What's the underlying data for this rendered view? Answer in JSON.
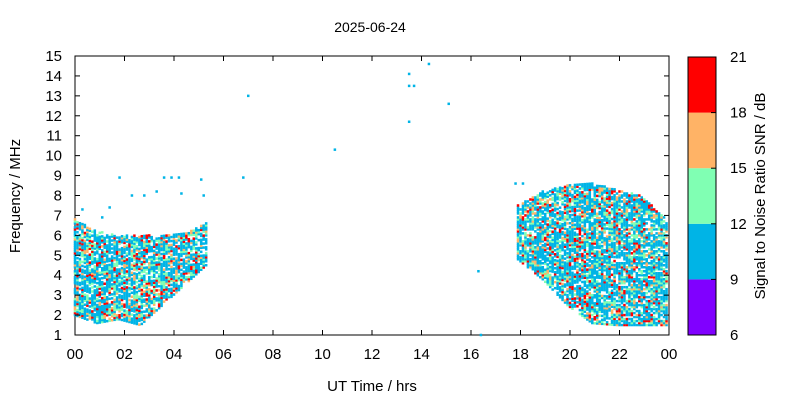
{
  "chart_data": {
    "type": "heatmap",
    "title": "2025-06-24",
    "xlabel": "UT Time / hrs",
    "ylabel": "Frequency / MHz",
    "xlim": [
      0,
      24
    ],
    "ylim": [
      1,
      15
    ],
    "x_ticks": [
      "00",
      "02",
      "04",
      "06",
      "08",
      "10",
      "12",
      "14",
      "16",
      "18",
      "20",
      "22",
      "00"
    ],
    "y_ticks": [
      "1",
      "2",
      "3",
      "4",
      "5",
      "6",
      "7",
      "8",
      "9",
      "10",
      "11",
      "12",
      "13",
      "14",
      "15"
    ],
    "colorbar": {
      "label": "Signal to Noise Ratio SNR / dB",
      "ticks": [
        "6",
        "9",
        "12",
        "15",
        "18",
        "21"
      ],
      "range": [
        6,
        21
      ],
      "bands": [
        {
          "min": 6,
          "max": 9,
          "color": "#8000ff"
        },
        {
          "min": 9,
          "max": 12,
          "color": "#00b4e6"
        },
        {
          "min": 12,
          "max": 15,
          "color": "#80ffb3"
        },
        {
          "min": 15,
          "max": 18,
          "color": "#ffb366"
        },
        {
          "min": 18,
          "max": 21,
          "color": "#ff0000"
        }
      ]
    },
    "isolated_points": [
      {
        "t": 1.8,
        "f": 8.9,
        "snr": 10
      },
      {
        "t": 2.3,
        "f": 8.0,
        "snr": 10
      },
      {
        "t": 2.8,
        "f": 8.0,
        "snr": 10
      },
      {
        "t": 3.3,
        "f": 8.2,
        "snr": 10
      },
      {
        "t": 3.6,
        "f": 8.9,
        "snr": 10
      },
      {
        "t": 3.9,
        "f": 8.9,
        "snr": 10
      },
      {
        "t": 4.2,
        "f": 8.9,
        "snr": 10
      },
      {
        "t": 4.3,
        "f": 8.1,
        "snr": 10
      },
      {
        "t": 5.1,
        "f": 8.8,
        "snr": 10
      },
      {
        "t": 5.2,
        "f": 8.0,
        "snr": 10
      },
      {
        "t": 6.8,
        "f": 8.9,
        "snr": 10
      },
      {
        "t": 7.0,
        "f": 13.0,
        "snr": 10
      },
      {
        "t": 10.5,
        "f": 10.3,
        "snr": 10
      },
      {
        "t": 13.5,
        "f": 14.1,
        "snr": 10
      },
      {
        "t": 13.5,
        "f": 13.5,
        "snr": 10
      },
      {
        "t": 13.7,
        "f": 13.5,
        "snr": 10
      },
      {
        "t": 13.5,
        "f": 11.7,
        "snr": 10
      },
      {
        "t": 14.3,
        "f": 14.6,
        "snr": 10
      },
      {
        "t": 15.1,
        "f": 12.6,
        "snr": 10
      },
      {
        "t": 16.3,
        "f": 4.2,
        "snr": 10
      },
      {
        "t": 16.4,
        "f": 1.0,
        "snr": 10
      },
      {
        "t": 17.8,
        "f": 8.6,
        "snr": 10
      },
      {
        "t": 18.1,
        "f": 8.6,
        "snr": 10
      },
      {
        "t": 0.3,
        "f": 7.3,
        "snr": 10
      },
      {
        "t": 1.4,
        "f": 7.4,
        "snr": 10
      },
      {
        "t": 1.1,
        "f": 6.9,
        "snr": 10
      }
    ],
    "clusters": [
      {
        "t0": 0.0,
        "t1": 5.3,
        "f_low": [
          2.0,
          1.6,
          1.8,
          1.5,
          2.5,
          3.5,
          4.5
        ],
        "f_high": [
          6.8,
          6.2,
          6.0,
          6.0,
          6.0,
          6.1,
          6.6
        ]
      },
      {
        "t0": 17.9,
        "t1": 23.9,
        "f_low": [
          4.8,
          3.8,
          2.5,
          1.6,
          1.5,
          1.5,
          1.5
        ],
        "f_high": [
          7.5,
          8.2,
          8.5,
          8.6,
          8.3,
          8.0,
          6.8
        ]
      }
    ]
  }
}
